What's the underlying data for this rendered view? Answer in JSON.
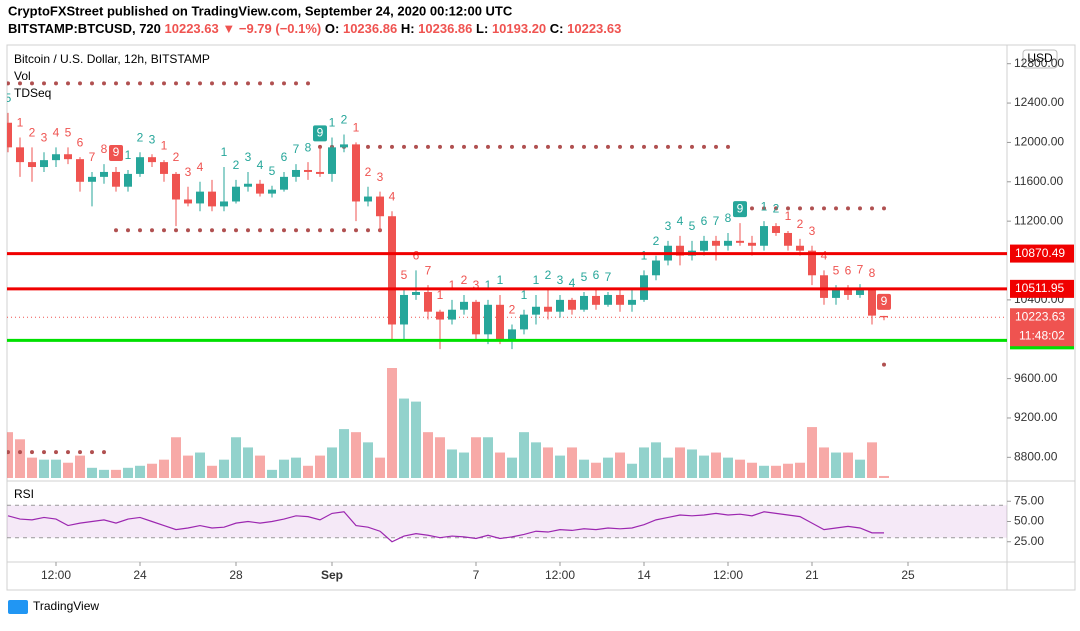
{
  "chart_data": {
    "type": "candlestick",
    "header": {
      "publisher": "CryptoFXStreet published on TradingView.com, September 24, 2020 00:12:00 UTC",
      "symbol": "BITSTAMP:BTCUSD, 720",
      "price": 10223.63,
      "arrow": "▼",
      "change": "−9.79 (−0.1%)",
      "ohlc": [
        {
          "label": "O:",
          "value": "10236.86"
        },
        {
          "label": "H:",
          "value": "10236.86"
        },
        {
          "label": "L:",
          "value": "10193.20"
        },
        {
          "label": "C:",
          "value": "10223.63"
        }
      ]
    },
    "legend": {
      "title": "Bitcoin / U.S. Dollar, 12h, BITSTAMP",
      "vol": "Vol",
      "td": "TDSeq",
      "rsi": "RSI",
      "currency": "USD",
      "brand": "TradingView"
    },
    "up_color": "#26a69a",
    "down_color": "#ef5350",
    "ylim": [
      8590,
      12990
    ],
    "yticks": [
      {
        "value": 12800,
        "label": "12800.00"
      },
      {
        "value": 12400,
        "label": "12400.00"
      },
      {
        "value": 12000,
        "label": "12000.00"
      },
      {
        "value": 11600,
        "label": "11600.00"
      },
      {
        "value": 11200,
        "label": "11200.00"
      },
      {
        "value": 10400,
        "label": "10400.00"
      },
      {
        "value": 9600,
        "label": "9600.00"
      },
      {
        "value": 9200,
        "label": "9200.00"
      },
      {
        "value": 8800,
        "label": "8800.00"
      }
    ],
    "xticks": [
      {
        "value": 4,
        "label": "12:00"
      },
      {
        "value": 11,
        "label": "24"
      },
      {
        "value": 19,
        "label": "28"
      },
      {
        "value": 27,
        "label": "Sep"
      },
      {
        "value": 39,
        "label": "7"
      },
      {
        "value": 46,
        "label": "12:00"
      },
      {
        "value": 53,
        "label": "14"
      },
      {
        "value": 60,
        "label": "12:00"
      },
      {
        "value": 67,
        "label": "21"
      },
      {
        "value": 75,
        "label": "25"
      }
    ],
    "candles": [
      {
        "o": 12200,
        "h": 12300,
        "l": 11900,
        "c": 11950
      },
      {
        "o": 11950,
        "h": 12050,
        "l": 11650,
        "c": 11800
      },
      {
        "o": 11800,
        "h": 11950,
        "l": 11600,
        "c": 11750
      },
      {
        "o": 11750,
        "h": 11900,
        "l": 11700,
        "c": 11820
      },
      {
        "o": 11820,
        "h": 11950,
        "l": 11750,
        "c": 11880
      },
      {
        "o": 11880,
        "h": 11950,
        "l": 11780,
        "c": 11830
      },
      {
        "o": 11830,
        "h": 11850,
        "l": 11500,
        "c": 11600
      },
      {
        "o": 11600,
        "h": 11700,
        "l": 11350,
        "c": 11650
      },
      {
        "o": 11650,
        "h": 11780,
        "l": 11580,
        "c": 11700
      },
      {
        "o": 11700,
        "h": 11750,
        "l": 11500,
        "c": 11550
      },
      {
        "o": 11550,
        "h": 11720,
        "l": 11500,
        "c": 11680
      },
      {
        "o": 11680,
        "h": 11900,
        "l": 11650,
        "c": 11850
      },
      {
        "o": 11850,
        "h": 11880,
        "l": 11750,
        "c": 11800
      },
      {
        "o": 11800,
        "h": 11820,
        "l": 11600,
        "c": 11680
      },
      {
        "o": 11680,
        "h": 11700,
        "l": 11150,
        "c": 11420
      },
      {
        "o": 11420,
        "h": 11550,
        "l": 11350,
        "c": 11380
      },
      {
        "o": 11380,
        "h": 11600,
        "l": 11300,
        "c": 11500
      },
      {
        "o": 11500,
        "h": 11620,
        "l": 11300,
        "c": 11350
      },
      {
        "o": 11350,
        "h": 11750,
        "l": 11300,
        "c": 11400
      },
      {
        "o": 11400,
        "h": 11620,
        "l": 11380,
        "c": 11550
      },
      {
        "o": 11550,
        "h": 11700,
        "l": 11500,
        "c": 11580
      },
      {
        "o": 11580,
        "h": 11620,
        "l": 11450,
        "c": 11480
      },
      {
        "o": 11480,
        "h": 11560,
        "l": 11440,
        "c": 11520
      },
      {
        "o": 11520,
        "h": 11700,
        "l": 11500,
        "c": 11650
      },
      {
        "o": 11650,
        "h": 11780,
        "l": 11600,
        "c": 11720
      },
      {
        "o": 11720,
        "h": 11800,
        "l": 11620,
        "c": 11700
      },
      {
        "o": 11700,
        "h": 11950,
        "l": 11650,
        "c": 11680
      },
      {
        "o": 11680,
        "h": 12050,
        "l": 11600,
        "c": 11950
      },
      {
        "o": 11950,
        "h": 12080,
        "l": 11900,
        "c": 11980
      },
      {
        "o": 11980,
        "h": 12000,
        "l": 11200,
        "c": 11400
      },
      {
        "o": 11400,
        "h": 11550,
        "l": 11350,
        "c": 11450
      },
      {
        "o": 11450,
        "h": 11500,
        "l": 11100,
        "c": 11250
      },
      {
        "o": 11250,
        "h": 11300,
        "l": 10000,
        "c": 10150
      },
      {
        "o": 10150,
        "h": 10500,
        "l": 10000,
        "c": 10450
      },
      {
        "o": 10450,
        "h": 10700,
        "l": 10400,
        "c": 10480
      },
      {
        "o": 10480,
        "h": 10550,
        "l": 10200,
        "c": 10280
      },
      {
        "o": 10280,
        "h": 10300,
        "l": 9900,
        "c": 10200
      },
      {
        "o": 10200,
        "h": 10400,
        "l": 10150,
        "c": 10300
      },
      {
        "o": 10300,
        "h": 10450,
        "l": 10250,
        "c": 10380
      },
      {
        "o": 10380,
        "h": 10400,
        "l": 10000,
        "c": 10050
      },
      {
        "o": 10050,
        "h": 10400,
        "l": 9950,
        "c": 10350
      },
      {
        "o": 10350,
        "h": 10450,
        "l": 9950,
        "c": 10000
      },
      {
        "o": 10000,
        "h": 10150,
        "l": 9900,
        "c": 10100
      },
      {
        "o": 10100,
        "h": 10300,
        "l": 10050,
        "c": 10250
      },
      {
        "o": 10250,
        "h": 10450,
        "l": 10150,
        "c": 10330
      },
      {
        "o": 10330,
        "h": 10500,
        "l": 10200,
        "c": 10280
      },
      {
        "o": 10280,
        "h": 10450,
        "l": 10220,
        "c": 10400
      },
      {
        "o": 10400,
        "h": 10420,
        "l": 10250,
        "c": 10300
      },
      {
        "o": 10300,
        "h": 10480,
        "l": 10280,
        "c": 10440
      },
      {
        "o": 10440,
        "h": 10500,
        "l": 10300,
        "c": 10350
      },
      {
        "o": 10350,
        "h": 10480,
        "l": 10330,
        "c": 10450
      },
      {
        "o": 10450,
        "h": 10500,
        "l": 10280,
        "c": 10350
      },
      {
        "o": 10350,
        "h": 10500,
        "l": 10280,
        "c": 10400
      },
      {
        "o": 10400,
        "h": 10700,
        "l": 10380,
        "c": 10650
      },
      {
        "o": 10650,
        "h": 10850,
        "l": 10600,
        "c": 10800
      },
      {
        "o": 10800,
        "h": 11000,
        "l": 10750,
        "c": 10950
      },
      {
        "o": 10950,
        "h": 11050,
        "l": 10750,
        "c": 10850
      },
      {
        "o": 10850,
        "h": 11000,
        "l": 10800,
        "c": 10900
      },
      {
        "o": 10900,
        "h": 11050,
        "l": 10850,
        "c": 11000
      },
      {
        "o": 11000,
        "h": 11050,
        "l": 10800,
        "c": 10950
      },
      {
        "o": 10950,
        "h": 11080,
        "l": 10900,
        "c": 11000
      },
      {
        "o": 11000,
        "h": 11180,
        "l": 10950,
        "c": 10980
      },
      {
        "o": 10980,
        "h": 11050,
        "l": 10850,
        "c": 10950
      },
      {
        "o": 10950,
        "h": 11200,
        "l": 10900,
        "c": 11150
      },
      {
        "o": 11150,
        "h": 11180,
        "l": 11050,
        "c": 11080
      },
      {
        "o": 11080,
        "h": 11100,
        "l": 10900,
        "c": 10950
      },
      {
        "o": 10950,
        "h": 11020,
        "l": 10850,
        "c": 10900
      },
      {
        "o": 10900,
        "h": 10950,
        "l": 10550,
        "c": 10650
      },
      {
        "o": 10650,
        "h": 10700,
        "l": 10350,
        "c": 10420
      },
      {
        "o": 10420,
        "h": 10550,
        "l": 10350,
        "c": 10500
      },
      {
        "o": 10500,
        "h": 10550,
        "l": 10400,
        "c": 10450
      },
      {
        "o": 10450,
        "h": 10560,
        "l": 10420,
        "c": 10500
      },
      {
        "o": 10500,
        "h": 10520,
        "l": 10150,
        "c": 10240
      },
      {
        "o": 10236.86,
        "h": 10236.86,
        "l": 10193.2,
        "c": 10223.63
      }
    ],
    "volume": [
      45,
      38,
      20,
      18,
      18,
      15,
      22,
      10,
      8,
      8,
      10,
      12,
      14,
      18,
      40,
      22,
      25,
      12,
      18,
      40,
      30,
      22,
      8,
      18,
      20,
      12,
      22,
      30,
      48,
      45,
      35,
      20,
      108,
      78,
      75,
      45,
      40,
      28,
      25,
      40,
      40,
      25,
      20,
      45,
      35,
      30,
      22,
      30,
      18,
      15,
      20,
      25,
      14,
      30,
      35,
      20,
      30,
      28,
      22,
      25,
      20,
      18,
      15,
      12,
      12,
      14,
      15,
      50,
      30,
      25,
      25,
      18,
      35,
      2
    ],
    "rsi": [
      57,
      53,
      52,
      55,
      53,
      45,
      48,
      50,
      52,
      48,
      53,
      55,
      50,
      45,
      40,
      42,
      45,
      42,
      43,
      48,
      50,
      48,
      50,
      53,
      57,
      56,
      52,
      60,
      62,
      45,
      43,
      38,
      25,
      32,
      35,
      33,
      30,
      32,
      31,
      29,
      33,
      29,
      31,
      34,
      38,
      37,
      40,
      39,
      41,
      40,
      42,
      41,
      42,
      46,
      52,
      55,
      58,
      57,
      58,
      60,
      58,
      59,
      57,
      62,
      60,
      58,
      56,
      48,
      40,
      42,
      44,
      42,
      36,
      36
    ],
    "rsi_lim": [
      0,
      100
    ],
    "rsi_band": [
      30,
      70
    ],
    "rsi_color": "#9c27b0",
    "rsi_ticks": [
      {
        "value": 75,
        "label": "75.00"
      },
      {
        "value": 50,
        "label": "50.00"
      },
      {
        "value": 25,
        "label": "25.00"
      }
    ],
    "price_lines": [
      {
        "value": 10870.49,
        "color": "#f00000"
      },
      {
        "value": 10511.95,
        "color": "#f00000"
      },
      {
        "value": 9988.67,
        "color": "#00e000"
      }
    ],
    "last_price": 10223.63,
    "countdown": "11:48:02",
    "td_levels": [
      {
        "value": 12600,
        "from": 0,
        "to": 25
      },
      {
        "value": 11955,
        "from": 26,
        "to": 60
      },
      {
        "value": 11108,
        "from": 9,
        "to": 31
      },
      {
        "value": 11330,
        "from": 61,
        "to": 73
      },
      {
        "value": 8853,
        "from": 0,
        "to": 8
      },
      {
        "value": 9742,
        "from": 73,
        "to": 73
      }
    ],
    "td": [
      {
        "i": 0,
        "n": 5,
        "c": "#26a69a"
      },
      {
        "i": 1,
        "n": 1,
        "c": "#ef5350"
      },
      {
        "i": 2,
        "n": 2,
        "c": "#ef5350"
      },
      {
        "i": 3,
        "n": 3,
        "c": "#ef5350"
      },
      {
        "i": 4,
        "n": 4,
        "c": "#ef5350"
      },
      {
        "i": 5,
        "n": 5,
        "c": "#ef5350"
      },
      {
        "i": 6,
        "n": 6,
        "c": "#ef5350"
      },
      {
        "i": 7,
        "n": 7,
        "c": "#ef5350"
      },
      {
        "i": 8,
        "n": 8,
        "c": "#ef5350"
      },
      {
        "i": 9,
        "n": 9,
        "c": "#ef5350"
      },
      {
        "i": 10,
        "n": 1,
        "c": "#26a69a"
      },
      {
        "i": 11,
        "n": 2,
        "c": "#26a69a"
      },
      {
        "i": 12,
        "n": 3,
        "c": "#26a69a"
      },
      {
        "i": 13,
        "n": 1,
        "c": "#ef5350"
      },
      {
        "i": 14,
        "n": 2,
        "c": "#ef5350"
      },
      {
        "i": 15,
        "n": 3,
        "c": "#ef5350"
      },
      {
        "i": 16,
        "n": 4,
        "c": "#ef5350"
      },
      {
        "i": 18,
        "n": 1,
        "c": "#26a69a"
      },
      {
        "i": 19,
        "n": 2,
        "c": "#26a69a"
      },
      {
        "i": 20,
        "n": 3,
        "c": "#26a69a"
      },
      {
        "i": 21,
        "n": 4,
        "c": "#26a69a"
      },
      {
        "i": 22,
        "n": 5,
        "c": "#26a69a"
      },
      {
        "i": 23,
        "n": 6,
        "c": "#26a69a"
      },
      {
        "i": 24,
        "n": 7,
        "c": "#26a69a"
      },
      {
        "i": 25,
        "n": 8,
        "c": "#26a69a"
      },
      {
        "i": 26,
        "n": 9,
        "c": "#26a69a"
      },
      {
        "i": 27,
        "n": 1,
        "c": "#26a69a"
      },
      {
        "i": 28,
        "n": 2,
        "c": "#26a69a"
      },
      {
        "i": 29,
        "n": 1,
        "c": "#ef5350"
      },
      {
        "i": 30,
        "n": 2,
        "c": "#ef5350"
      },
      {
        "i": 31,
        "n": 3,
        "c": "#ef5350"
      },
      {
        "i": 32,
        "n": 4,
        "c": "#ef5350"
      },
      {
        "i": 33,
        "n": 5,
        "c": "#ef5350"
      },
      {
        "i": 34,
        "n": 6,
        "c": "#ef5350"
      },
      {
        "i": 35,
        "n": 7,
        "c": "#ef5350"
      },
      {
        "i": 36,
        "n": 1,
        "c": "#ef5350"
      },
      {
        "i": 37,
        "n": 1,
        "c": "#ef5350"
      },
      {
        "i": 38,
        "n": 2,
        "c": "#ef5350"
      },
      {
        "i": 39,
        "n": 3,
        "c": "#ef5350"
      },
      {
        "i": 40,
        "n": 1,
        "c": "#26a69a"
      },
      {
        "i": 41,
        "n": 1,
        "c": "#26a69a"
      },
      {
        "i": 42,
        "n": 2,
        "c": "#ef5350"
      },
      {
        "i": 43,
        "n": 1,
        "c": "#26a69a"
      },
      {
        "i": 44,
        "n": 1,
        "c": "#26a69a"
      },
      {
        "i": 45,
        "n": 2,
        "c": "#26a69a"
      },
      {
        "i": 46,
        "n": 3,
        "c": "#26a69a"
      },
      {
        "i": 47,
        "n": 4,
        "c": "#26a69a"
      },
      {
        "i": 48,
        "n": 5,
        "c": "#26a69a"
      },
      {
        "i": 49,
        "n": 6,
        "c": "#26a69a"
      },
      {
        "i": 50,
        "n": 7,
        "c": "#26a69a"
      },
      {
        "i": 53,
        "n": 1,
        "c": "#26a69a"
      },
      {
        "i": 54,
        "n": 2,
        "c": "#26a69a"
      },
      {
        "i": 55,
        "n": 3,
        "c": "#26a69a"
      },
      {
        "i": 56,
        "n": 4,
        "c": "#26a69a"
      },
      {
        "i": 57,
        "n": 5,
        "c": "#26a69a"
      },
      {
        "i": 58,
        "n": 6,
        "c": "#26a69a"
      },
      {
        "i": 59,
        "n": 7,
        "c": "#26a69a"
      },
      {
        "i": 60,
        "n": 8,
        "c": "#26a69a"
      },
      {
        "i": 61,
        "n": 9,
        "c": "#26a69a"
      },
      {
        "i": 63,
        "n": 1,
        "c": "#26a69a"
      },
      {
        "i": 64,
        "n": 2,
        "c": "#26a69a"
      },
      {
        "i": 65,
        "n": 1,
        "c": "#ef5350"
      },
      {
        "i": 66,
        "n": 2,
        "c": "#ef5350"
      },
      {
        "i": 67,
        "n": 3,
        "c": "#ef5350"
      },
      {
        "i": 68,
        "n": 4,
        "c": "#ef5350"
      },
      {
        "i": 69,
        "n": 5,
        "c": "#ef5350"
      },
      {
        "i": 70,
        "n": 6,
        "c": "#ef5350"
      },
      {
        "i": 71,
        "n": 7,
        "c": "#ef5350"
      },
      {
        "i": 72,
        "n": 8,
        "c": "#ef5350"
      },
      {
        "i": 73,
        "n": 9,
        "c": "#ef5350"
      }
    ]
  }
}
